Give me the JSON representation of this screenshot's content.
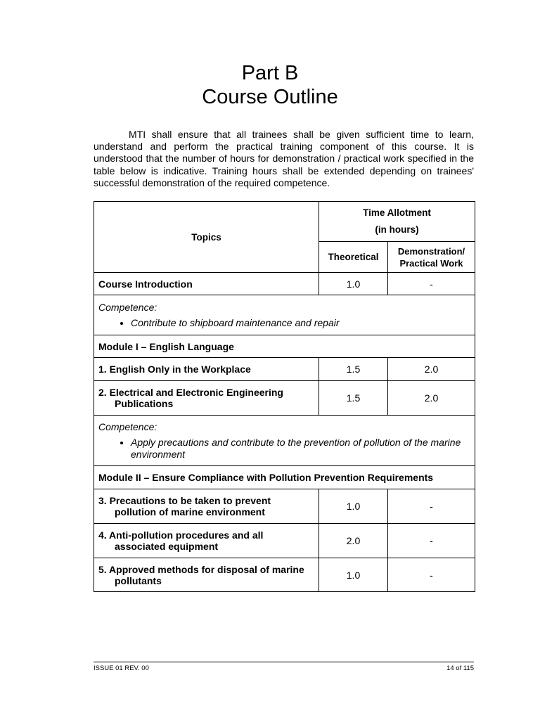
{
  "title": {
    "line1": "Part B",
    "line2": "Course Outline"
  },
  "intro": "MTI shall ensure that all trainees shall be given sufficient time to learn, understand and perform the practical training component of this course. It is understood that the number of hours for demonstration / practical work specified in the table below is indicative. Training hours shall be extended depending on trainees' successful demonstration of the required competence.",
  "table": {
    "headers": {
      "topics": "Topics",
      "time_allotment": "Time Allotment",
      "in_hours": "(in hours)",
      "theoretical": "Theoretical",
      "practical": "Demonstration/ Practical Work"
    },
    "course_intro": {
      "topic": "Course Introduction",
      "theoretical": "1.0",
      "practical": "-"
    },
    "competence1": {
      "label": "Competence:",
      "item": "Contribute to shipboard maintenance and repair"
    },
    "module1": "Module I – English Language",
    "rows1": [
      {
        "topic": "1.  English Only in the Workplace",
        "theoretical": "1.5",
        "practical": "2.0"
      },
      {
        "topic": "2.  Electrical and Electronic Engineering Publications",
        "theoretical": "1.5",
        "practical": "2.0"
      }
    ],
    "competence2": {
      "label": "Competence:",
      "item": "Apply precautions and contribute to the prevention of pollution of the marine environment"
    },
    "module2": "Module II – Ensure Compliance with Pollution Prevention Requirements",
    "rows2": [
      {
        "topic": "3.  Precautions to be taken to prevent pollution of marine environment",
        "theoretical": "1.0",
        "practical": "-"
      },
      {
        "topic": "4.  Anti-pollution procedures and all associated equipment",
        "theoretical": "2.0",
        "practical": "-"
      },
      {
        "topic": "5.  Approved methods for disposal of marine pollutants",
        "theoretical": "1.0",
        "practical": "-"
      }
    ]
  },
  "footer": {
    "issue": "ISSUE 01 REV. 00",
    "page": "14 of 115"
  }
}
